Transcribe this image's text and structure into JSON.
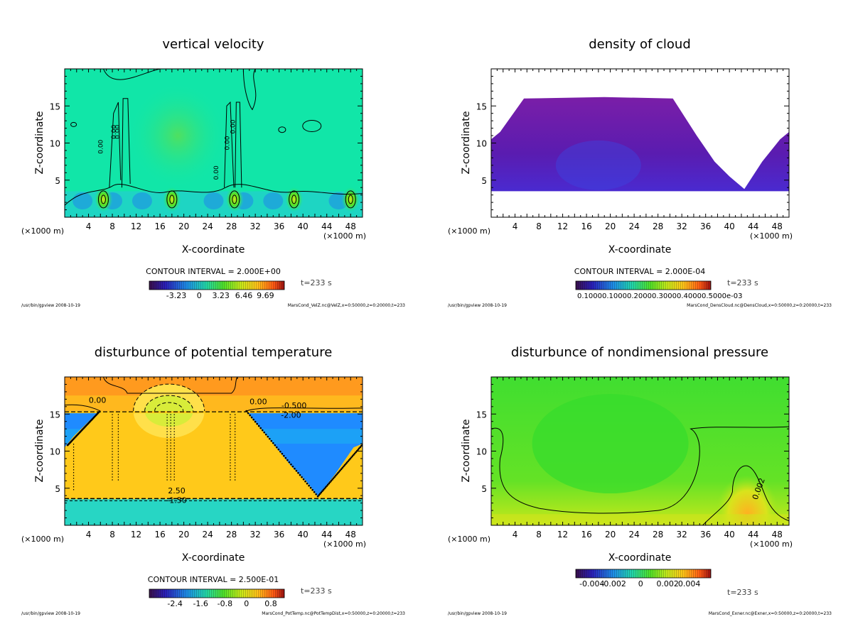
{
  "chart_data": [
    {
      "type": "heatmap",
      "title": "vertical velocity",
      "xlabel": "X-coordinate",
      "ylabel": "Z-coordinate",
      "x_unit": "(×1000 m)",
      "xticks": [
        4,
        8,
        12,
        16,
        20,
        24,
        28,
        32,
        36,
        40,
        44,
        48
      ],
      "yticks": [
        5,
        10,
        15
      ],
      "xlim": [
        0,
        50
      ],
      "ylim": [
        0,
        20
      ],
      "contour_interval": "CONTOUR INTERVAL = 2.000E+00",
      "contour_labels": [
        "0.00",
        "0.00",
        "0.00",
        "0.00",
        "0.00",
        "0.00"
      ],
      "colorbar_ticks": [
        "-3.23",
        "0",
        "3.23",
        "6.46",
        "9.69"
      ],
      "time": "t=233 s",
      "footer_left": "/usr/bin/gpview  2008-10-19",
      "footer_right": "MarsCond_VelZ.nc@VelZ,x=0:50000,z=0:20000,t=233",
      "colormap": "rainbow",
      "background_color": "#11e6a8",
      "contour_color": "#000000"
    },
    {
      "type": "heatmap",
      "title": "density of cloud",
      "xlabel": "X-coordinate",
      "ylabel": "Z-coordinate",
      "x_unit": "(×1000 m)",
      "xticks": [
        4,
        8,
        12,
        16,
        20,
        24,
        28,
        32,
        36,
        40,
        44,
        48
      ],
      "yticks": [
        5,
        10,
        15
      ],
      "xlim": [
        0,
        50
      ],
      "ylim": [
        0,
        20
      ],
      "contour_interval": "CONTOUR INTERVAL = 2.000E-04",
      "colorbar_ticks": [
        "0.1000E-03",
        "0.2000E-03",
        "0.3000E-03",
        "0.4000E-03",
        "0.5000E-03"
      ],
      "colorbar_ticks_raw": "0.10000.10000.20000.30000.40000.5000e-03",
      "cloud_region_z": [
        3.5,
        16
      ],
      "time": "t=233 s",
      "footer_left": "/usr/bin/gpview  2008-10-19",
      "footer_right": "MarsCond_DensCloud.nc@DensCloud,x=0:50000,z=0:20000,t=233",
      "colormap": "rainbow",
      "cloud_color": "#6a1ea8"
    },
    {
      "type": "heatmap",
      "title": "disturbunce of potential temperature",
      "xlabel": "X-coordinate",
      "ylabel": "Z-coordinate",
      "x_unit": "(×1000 m)",
      "xticks": [
        4,
        8,
        12,
        16,
        20,
        24,
        28,
        32,
        36,
        40,
        44,
        48
      ],
      "yticks": [
        5,
        10,
        15
      ],
      "xlim": [
        0,
        50
      ],
      "ylim": [
        0,
        20
      ],
      "contour_interval": "CONTOUR INTERVAL = 2.500E-01",
      "contour_labels": [
        "0.00",
        "0.00",
        "-0.500",
        "-2.00",
        "2.50",
        "-1.50"
      ],
      "colorbar_ticks": [
        "-2.4",
        "-1.6",
        "-0.8",
        "0",
        "0.8"
      ],
      "time": "t=233 s",
      "footer_left": "/usr/bin/gpview  2008-10-19",
      "footer_right": "MarsCond_PotTemp.nc@PotTempDist,x=0:50000,z=0:20000,t=233",
      "colormap": "rainbow",
      "colors": {
        "warm": "#ffc91a",
        "top": "#ff9a1e",
        "cold": "#1f8bff",
        "low": "#27d6c4"
      }
    },
    {
      "type": "heatmap",
      "title": "disturbunce of nondimensional pressure",
      "xlabel": "X-coordinate",
      "ylabel": "Z-coordinate",
      "x_unit": "(×1000 m)",
      "xticks": [
        4,
        8,
        12,
        16,
        20,
        24,
        28,
        32,
        36,
        40,
        44,
        48
      ],
      "yticks": [
        5,
        10,
        15
      ],
      "xlim": [
        0,
        50
      ],
      "ylim": [
        0,
        20
      ],
      "contour_labels": [
        "0.002"
      ],
      "colorbar_ticks": [
        "-0.004",
        "-0.002",
        "0",
        "0.002",
        "0.004"
      ],
      "time": "t=233 s",
      "footer_left": "/usr/bin/gpview  2008-10-19",
      "footer_right": "MarsCond_Exner.nc@Exner,x=0:50000,z=0:20000,t=233",
      "colormap": "rainbow",
      "colors": {
        "main": "#4fe02a",
        "lower": "#b7e81a",
        "high": "#ffb020"
      }
    }
  ]
}
